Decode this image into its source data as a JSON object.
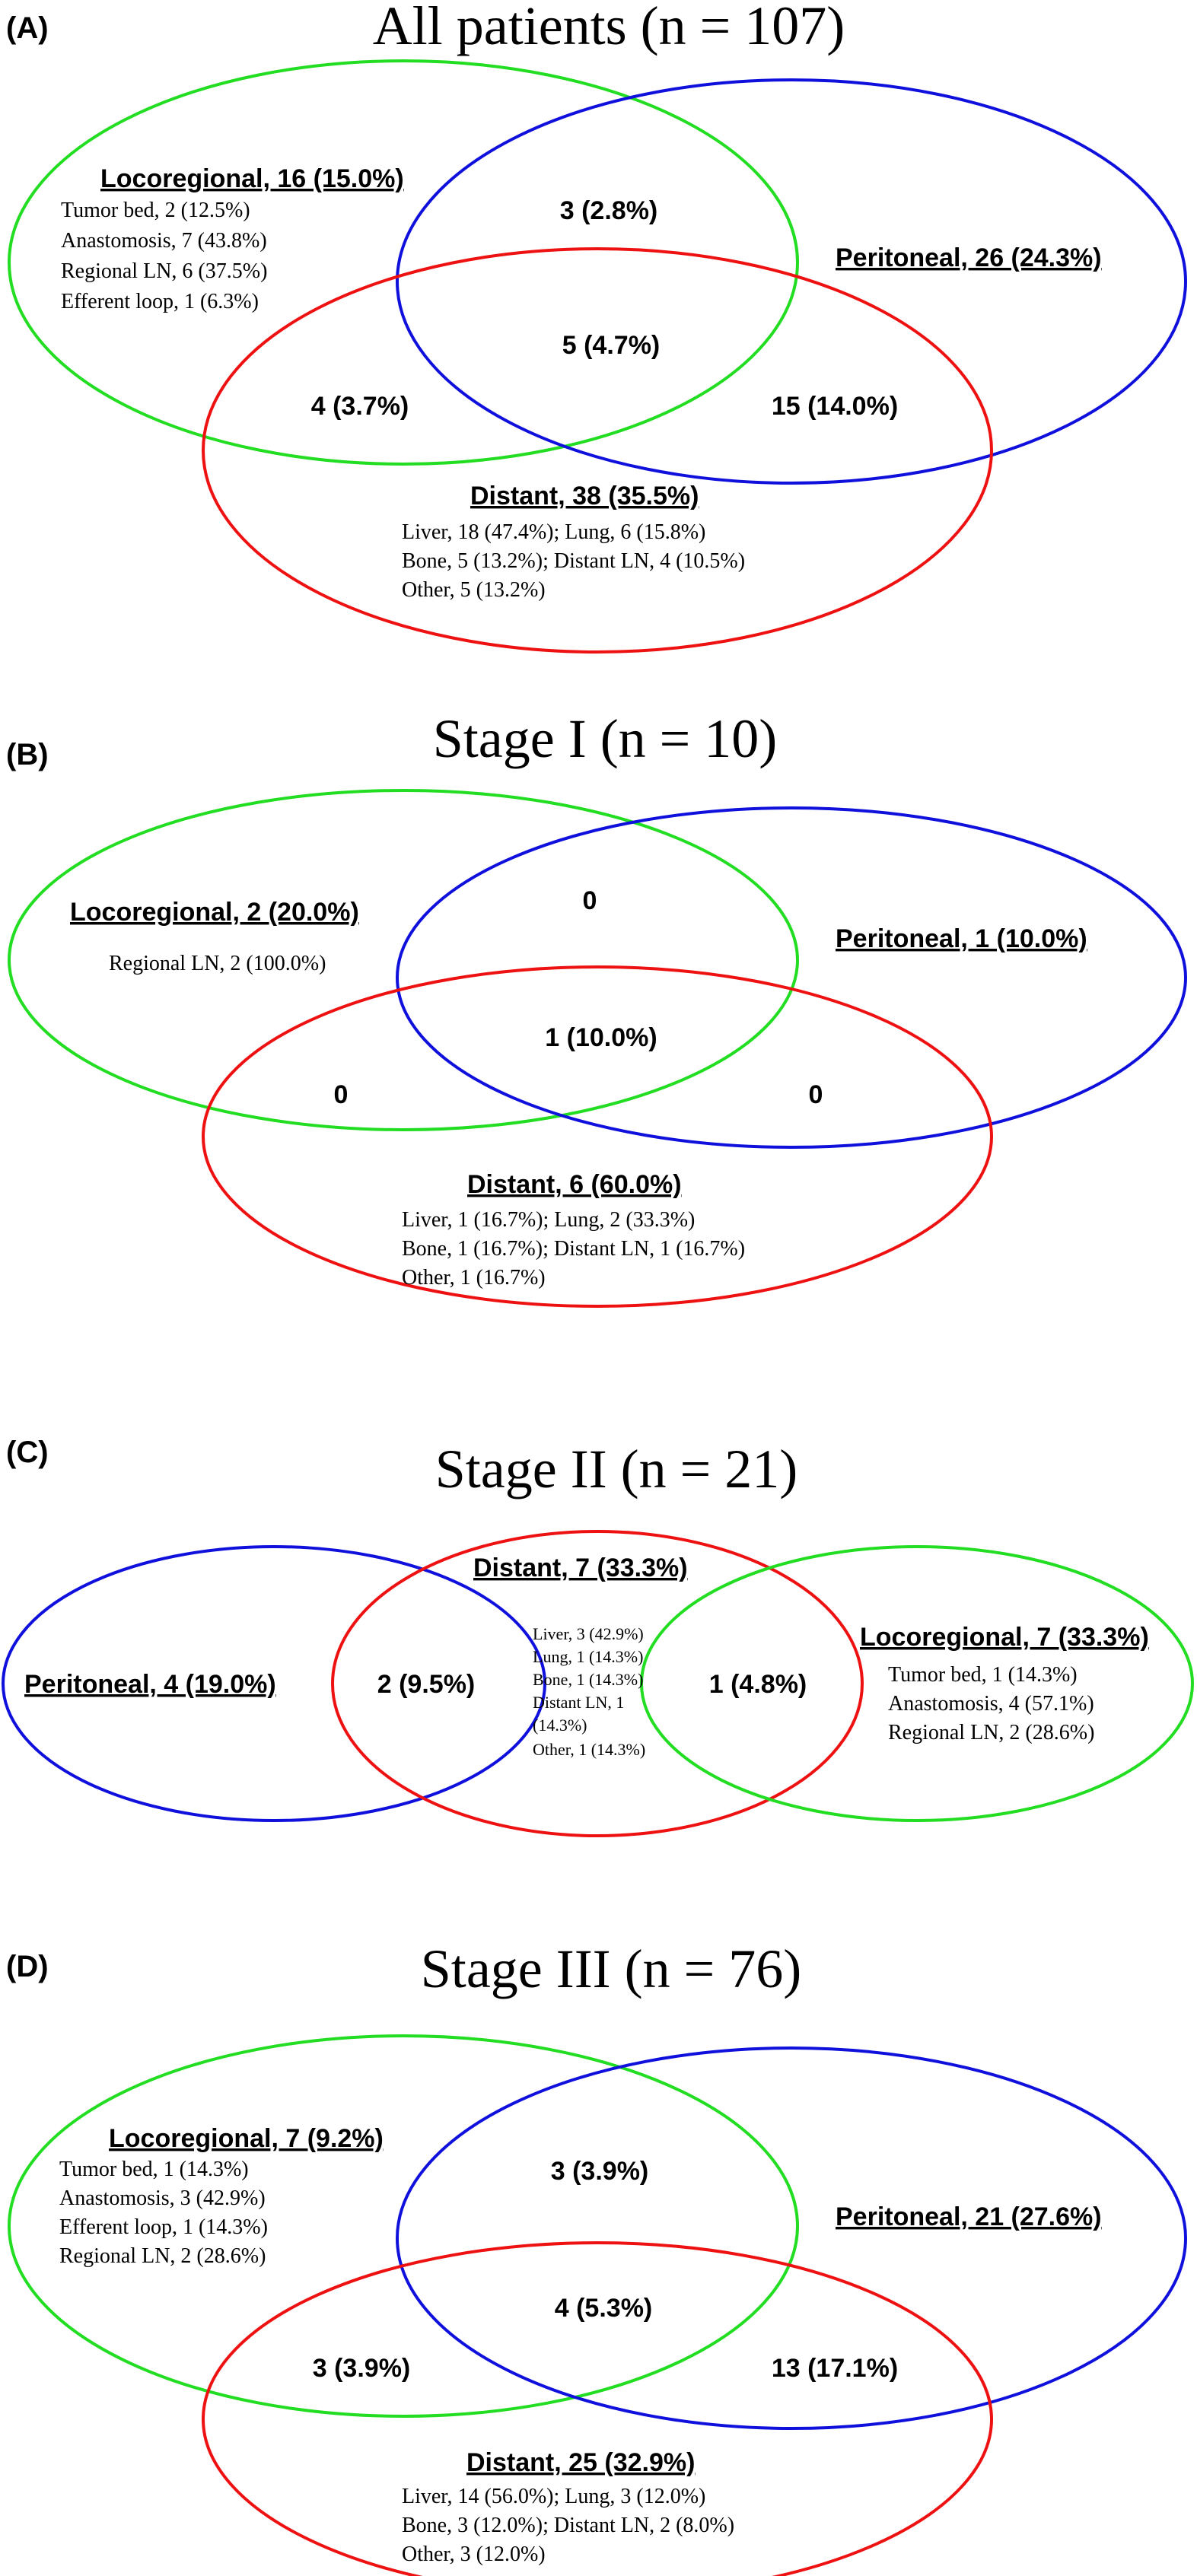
{
  "colors": {
    "locoregional": "#22dd22",
    "peritoneal": "#1010dd",
    "distant": "#ee1111"
  },
  "panels": [
    {
      "letter": "(A)",
      "title": "All patients (n = 107)",
      "locoregional": {
        "label": "Locoregional, 16 (15.0%)",
        "details": [
          "Tumor bed, 2 (12.5%)",
          "Anastomosis, 7 (43.8%)",
          "Regional LN, 6 (37.5%)",
          "Efferent loop, 1 (6.3%)"
        ]
      },
      "peritoneal": {
        "label": "Peritoneal, 26 (24.3%)"
      },
      "distant": {
        "label": "Distant, 38 (35.5%)",
        "details": [
          "Liver, 18 (47.4%); Lung, 6 (15.8%)",
          "Bone, 5 (13.2%); Distant LN, 4 (10.5%)",
          "Other, 5 (13.2%)"
        ]
      },
      "regions": {
        "loco_perit": "3 (2.8%)",
        "all_three": "5 (4.7%)",
        "loco_dist": "4 (3.7%)",
        "perit_dist": "15 (14.0%)"
      }
    },
    {
      "letter": "(B)",
      "title": "Stage I (n = 10)",
      "locoregional": {
        "label": "Locoregional, 2 (20.0%)",
        "details": [
          "Regional LN, 2 (100.0%)"
        ]
      },
      "peritoneal": {
        "label": "Peritoneal, 1 (10.0%)"
      },
      "distant": {
        "label": "Distant, 6 (60.0%)",
        "details": [
          "Liver, 1 (16.7%); Lung, 2 (33.3%)",
          "Bone, 1 (16.7%); Distant LN, 1 (16.7%)",
          "Other, 1 (16.7%)"
        ]
      },
      "regions": {
        "loco_perit": "0",
        "all_three": "1 (10.0%)",
        "loco_dist": "0",
        "perit_dist": "0"
      }
    },
    {
      "letter": "(C)",
      "title": "Stage II (n = 21)",
      "peritoneal": {
        "label": "Peritoneal, 4 (19.0%)"
      },
      "distant": {
        "label": "Distant, 7 (33.3%)",
        "details": [
          "Liver, 3 (42.9%)",
          "Lung, 1 (14.3%)",
          "Bone, 1 (14.3%)",
          "Distant LN, 1",
          "(14.3%)",
          "Other, 1 (14.3%)"
        ]
      },
      "locoregional": {
        "label": "Locoregional, 7 (33.3%)",
        "details": [
          "Tumor bed, 1 (14.3%)",
          "Anastomosis, 4 (57.1%)",
          "Regional LN, 2 (28.6%)"
        ]
      },
      "regions": {
        "perit_dist": "2 (9.5%)",
        "dist_loco": "1 (4.8%)"
      }
    },
    {
      "letter": "(D)",
      "title": "Stage III (n = 76)",
      "locoregional": {
        "label": "Locoregional, 7 (9.2%)",
        "details": [
          "Tumor bed, 1 (14.3%)",
          "Anastomosis, 3 (42.9%)",
          "Efferent loop, 1 (14.3%)",
          "Regional LN, 2 (28.6%)"
        ]
      },
      "peritoneal": {
        "label": "Peritoneal, 21 (27.6%)"
      },
      "distant": {
        "label": "Distant, 25 (32.9%)",
        "details": [
          "Liver, 14 (56.0%); Lung, 3 (12.0%)",
          "Bone, 3 (12.0%); Distant LN, 2 (8.0%)",
          "Other, 3 (12.0%)"
        ]
      },
      "regions": {
        "loco_perit": "3 (3.9%)",
        "all_three": "4 (5.3%)",
        "loco_dist": "3 (3.9%)",
        "perit_dist": "13 (17.1%)"
      }
    }
  ]
}
